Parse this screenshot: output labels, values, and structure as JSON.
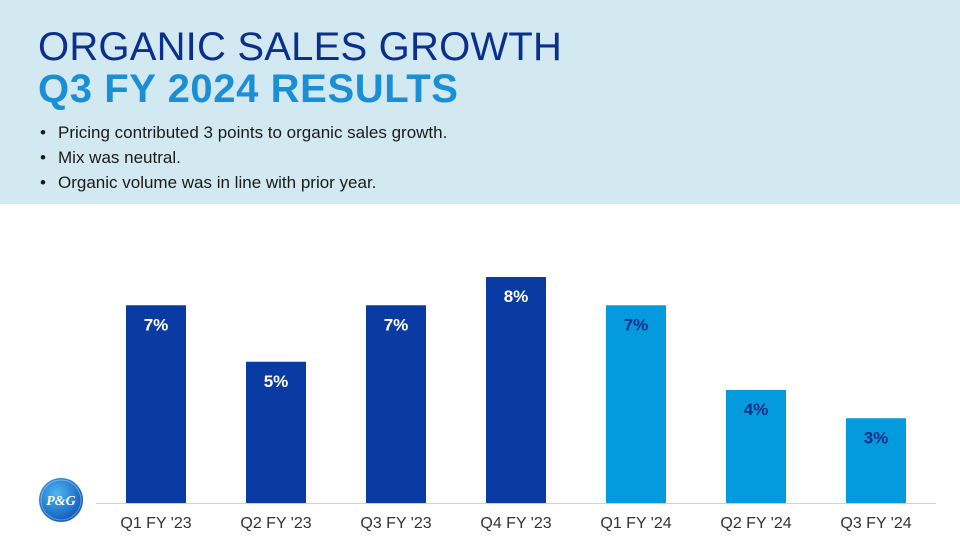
{
  "header": {
    "title_line1": "ORGANIC SALES GROWTH",
    "title_line2": "Q3 FY 2024 RESULTS",
    "bullets": [
      "Pricing contributed 3 points to organic sales growth.",
      "Mix was neutral.",
      "Organic volume was in line with prior year."
    ]
  },
  "logo": {
    "text": "P&G",
    "icon": "pg-logo-icon"
  },
  "colors": {
    "dark_bar": "#0a3ba3",
    "light_bar": "#049bde",
    "header_bg": "#d2e9f2",
    "label_dark_bar": "#ffffff",
    "label_light_bar": "#0a2f8c"
  },
  "chart_data": {
    "type": "bar",
    "categories": [
      "Q1 FY '23",
      "Q2 FY '23",
      "Q3 FY '23",
      "Q4 FY '23",
      "Q1 FY '24",
      "Q2 FY '24",
      "Q3 FY '24"
    ],
    "values": [
      7,
      5,
      7,
      8,
      7,
      4,
      3
    ],
    "data_labels": [
      "7%",
      "5%",
      "7%",
      "8%",
      "7%",
      "4%",
      "3%"
    ],
    "bar_color_group": [
      "dark",
      "dark",
      "dark",
      "dark",
      "light",
      "light",
      "light"
    ],
    "title": "",
    "xlabel": "",
    "ylabel": "",
    "ylim": [
      0,
      8
    ],
    "grid": false,
    "legend": "none"
  }
}
